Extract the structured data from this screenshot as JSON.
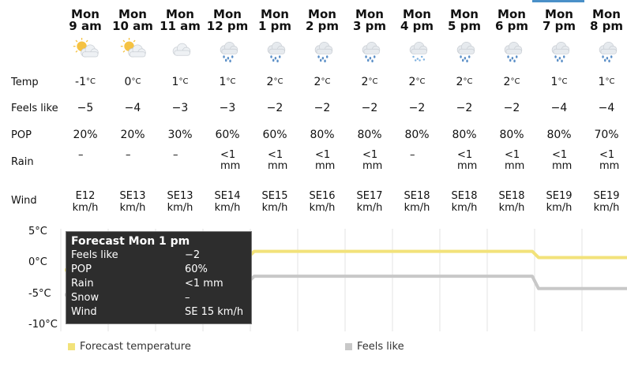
{
  "row_labels": {
    "temp": "Temp",
    "feels": "Feels like",
    "pop": "POP",
    "rain": "Rain",
    "wind": "Wind"
  },
  "selected_index": 10,
  "columns": [
    {
      "day": "Mon",
      "time": "9 am",
      "icon": "sun-cloud-icon",
      "temp": "-1",
      "feels": "−5",
      "pop": "20%",
      "rain1": "–",
      "rain2": "",
      "wind1": "E12",
      "wind2": "km/h"
    },
    {
      "day": "Mon",
      "time": "10 am",
      "icon": "sun-cloud-icon",
      "temp": "0",
      "feels": "−4",
      "pop": "20%",
      "rain1": "–",
      "rain2": "",
      "wind1": "SE13",
      "wind2": "km/h"
    },
    {
      "day": "Mon",
      "time": "11 am",
      "icon": "cloud-icon",
      "temp": "1",
      "feels": "−3",
      "pop": "30%",
      "rain1": "–",
      "rain2": "",
      "wind1": "SE13",
      "wind2": "km/h"
    },
    {
      "day": "Mon",
      "time": "12 pm",
      "icon": "rain-cloud-icon",
      "temp": "1",
      "feels": "−3",
      "pop": "60%",
      "rain1": "<1",
      "rain2": "mm",
      "wind1": "SE14",
      "wind2": "km/h"
    },
    {
      "day": "Mon",
      "time": "1 pm",
      "icon": "rain-cloud-icon",
      "temp": "2",
      "feels": "−2",
      "pop": "60%",
      "rain1": "<1",
      "rain2": "mm",
      "wind1": "SE15",
      "wind2": "km/h"
    },
    {
      "day": "Mon",
      "time": "2 pm",
      "icon": "rain-cloud-icon",
      "temp": "2",
      "feels": "−2",
      "pop": "80%",
      "rain1": "<1",
      "rain2": "mm",
      "wind1": "SE16",
      "wind2": "km/h"
    },
    {
      "day": "Mon",
      "time": "3 pm",
      "icon": "rain-cloud-icon",
      "temp": "2",
      "feels": "−2",
      "pop": "80%",
      "rain1": "<1",
      "rain2": "mm",
      "wind1": "SE17",
      "wind2": "km/h"
    },
    {
      "day": "Mon",
      "time": "4 pm",
      "icon": "snow-rain-cloud-icon",
      "temp": "2",
      "feels": "−2",
      "pop": "80%",
      "rain1": "–",
      "rain2": "",
      "wind1": "SE18",
      "wind2": "km/h"
    },
    {
      "day": "Mon",
      "time": "5 pm",
      "icon": "rain-cloud-icon",
      "temp": "2",
      "feels": "−2",
      "pop": "80%",
      "rain1": "<1",
      "rain2": "mm",
      "wind1": "SE18",
      "wind2": "km/h"
    },
    {
      "day": "Mon",
      "time": "6 pm",
      "icon": "rain-cloud-icon",
      "temp": "2",
      "feels": "−2",
      "pop": "80%",
      "rain1": "<1",
      "rain2": "mm",
      "wind1": "SE18",
      "wind2": "km/h"
    },
    {
      "day": "Mon",
      "time": "7 pm",
      "icon": "rain-cloud-icon",
      "temp": "1",
      "feels": "−4",
      "pop": "80%",
      "rain1": "<1",
      "rain2": "mm",
      "wind1": "SE19",
      "wind2": "km/h"
    },
    {
      "day": "Mon",
      "time": "8 pm",
      "icon": "rain-cloud-icon",
      "temp": "1",
      "feels": "−4",
      "pop": "70%",
      "rain1": "<1",
      "rain2": "mm",
      "wind1": "SE19",
      "wind2": "km/h"
    }
  ],
  "deg_unit": "°C",
  "chart_data": {
    "type": "line",
    "categories": [
      "9 am",
      "10 am",
      "11 am",
      "12 pm",
      "1 pm",
      "2 pm",
      "3 pm",
      "4 pm",
      "5 pm",
      "6 pm",
      "7 pm",
      "8 pm"
    ],
    "series": [
      {
        "name": "Forecast temperature",
        "values": [
          -1,
          0,
          1,
          1,
          2,
          2,
          2,
          2,
          2,
          2,
          1,
          1
        ],
        "color": "#f2e27a"
      },
      {
        "name": "Feels like",
        "values": [
          -5,
          -4,
          -3,
          -3,
          -2,
          -2,
          -2,
          -2,
          -2,
          -2,
          -4,
          -4
        ],
        "color": "#c8c8c8"
      }
    ],
    "y_ticks": [
      "5°C",
      "0°C",
      "-5°C",
      "-10°C"
    ],
    "ylim": [
      -10,
      5
    ],
    "grid": "vertical",
    "legend": "bottom"
  },
  "tooltip": {
    "title": "Forecast Mon 1 pm",
    "rows": [
      {
        "k": "Feels like",
        "v": "−2"
      },
      {
        "k": "POP",
        "v": "60%"
      },
      {
        "k": "Rain",
        "v": "<1 mm"
      },
      {
        "k": "Snow",
        "v": "–"
      },
      {
        "k": "Wind",
        "v": "SE 15 km/h"
      }
    ]
  },
  "legend": {
    "temp": "Forecast temperature",
    "feels": "Feels like"
  }
}
